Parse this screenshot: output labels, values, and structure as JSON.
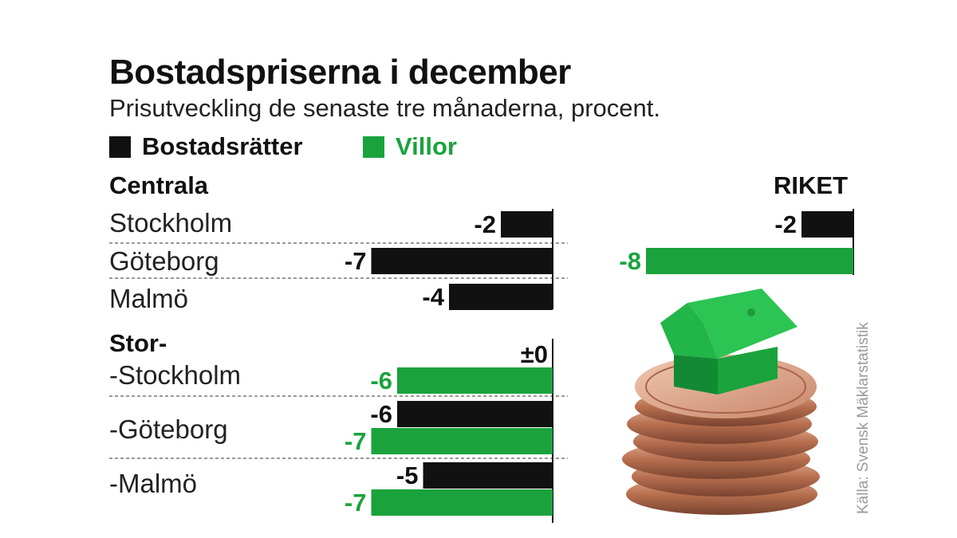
{
  "title": "Bostadspriserna i december",
  "subtitle": "Prisutveckling de senaste tre månaderna, procent.",
  "legend": [
    {
      "label": "Bostadsrätter",
      "color": "#111111"
    },
    {
      "label": "Villor",
      "color": "#1aa33c"
    }
  ],
  "sections": {
    "centrala": "Centrala",
    "stor": "Stor-",
    "riket": "RIKET"
  },
  "row_labels": {
    "centrala": [
      "Stockholm",
      "Göteborg",
      "Malmö"
    ],
    "stor": [
      "-Stockholm",
      "-Göteborg",
      "-Malmö"
    ]
  },
  "source": "Källa: Svensk Mäklarstatistik",
  "chart_data": {
    "type": "bar",
    "orientation": "horizontal",
    "title": "Bostadspriserna i december",
    "subtitle": "Prisutveckling de senaste tre månaderna, procent.",
    "series": [
      {
        "name": "Bostadsrätter",
        "color": "#111111"
      },
      {
        "name": "Villor",
        "color": "#1aa33c"
      }
    ],
    "groups": [
      {
        "section": "Centrala",
        "category": "Stockholm",
        "values": {
          "Bostadsrätter": -2
        },
        "labels": {
          "Bostadsrätter": "-2"
        }
      },
      {
        "section": "Centrala",
        "category": "Göteborg",
        "values": {
          "Bostadsrätter": -7
        },
        "labels": {
          "Bostadsrätter": "-7"
        }
      },
      {
        "section": "Centrala",
        "category": "Malmö",
        "values": {
          "Bostadsrätter": -4
        },
        "labels": {
          "Bostadsrätter": "-4"
        }
      },
      {
        "section": "Stor-",
        "category": "-Stockholm",
        "values": {
          "Bostadsrätter": 0,
          "Villor": -6
        },
        "labels": {
          "Bostadsrätter": "±0",
          "Villor": "-6"
        }
      },
      {
        "section": "Stor-",
        "category": "-Göteborg",
        "values": {
          "Bostadsrätter": -6,
          "Villor": -7
        },
        "labels": {
          "Bostadsrätter": "-6",
          "Villor": "-7"
        }
      },
      {
        "section": "Stor-",
        "category": "-Malmö",
        "values": {
          "Bostadsrätter": -5,
          "Villor": -7
        },
        "labels": {
          "Bostadsrätter": "-5",
          "Villor": "-7"
        }
      },
      {
        "section": "RIKET",
        "category": "",
        "values": {
          "Bostadsrätter": -2,
          "Villor": -8
        },
        "labels": {
          "Bostadsrätter": "-2",
          "Villor": "-8"
        }
      }
    ]
  }
}
